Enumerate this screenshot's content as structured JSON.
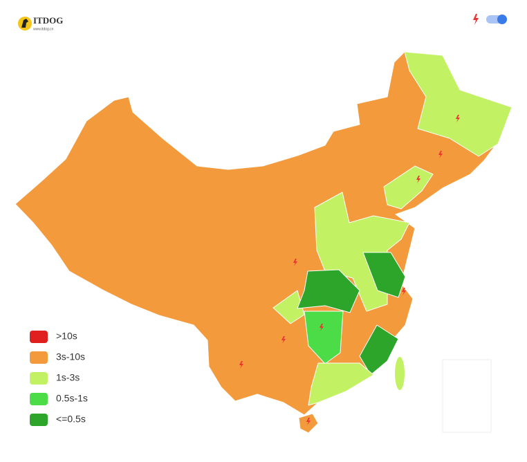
{
  "header": {
    "logo": "ITDOG",
    "logo_url": "www.itdog.cn"
  },
  "legend": [
    {
      "label": ">10s",
      "color": "#e01f1f"
    },
    {
      "label": "3s-10s",
      "color": "#f39b3c"
    },
    {
      "label": "1s-3s",
      "color": "#c2f263"
    },
    {
      "label": "0.5s-1s",
      "color": "#4cdc47"
    },
    {
      "label": "<=0.5s",
      "color": "#2ca52a"
    }
  ]
}
